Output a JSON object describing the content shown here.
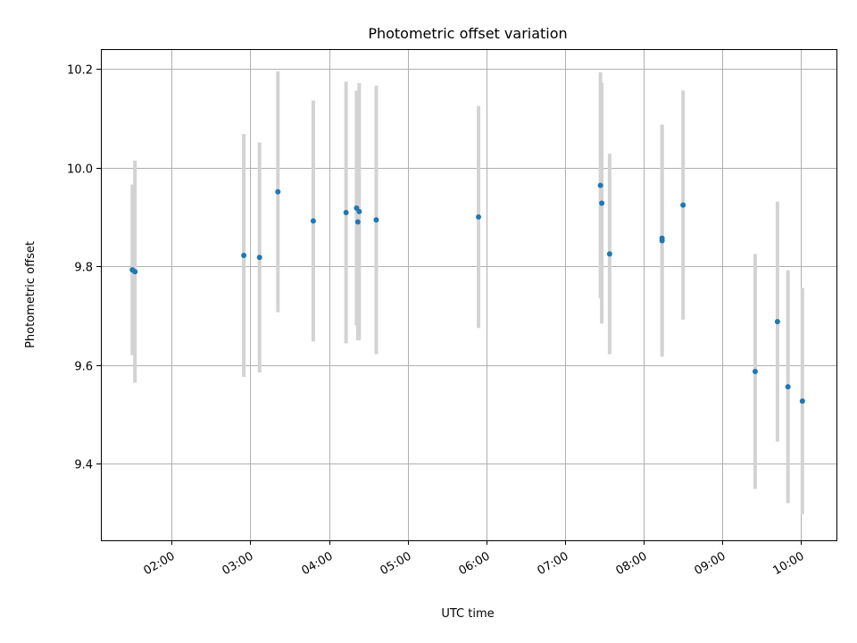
{
  "chart_data": {
    "type": "scatter",
    "title": "Photometric offset variation",
    "xlabel": "UTC time",
    "ylabel": "Photometric offset",
    "x_axis_type": "time",
    "xlim": [
      "01:06",
      "10:27"
    ],
    "ylim": [
      9.245,
      10.24
    ],
    "x_ticks": [
      "02:00",
      "03:00",
      "04:00",
      "05:00",
      "06:00",
      "07:00",
      "08:00",
      "09:00",
      "10:00"
    ],
    "y_ticks": [
      9.4,
      9.6,
      9.8,
      10.0,
      10.2
    ],
    "y_tick_labels": [
      "9.4",
      "9.6",
      "9.8",
      "10.0",
      "10.2"
    ],
    "grid": true,
    "legend": "none",
    "point_color": "#1f77b4",
    "errorbar_color": "#d3d3d3",
    "points": [
      {
        "x": "01:30",
        "y": 9.793,
        "err": 0.173
      },
      {
        "x": "01:32",
        "y": 9.789,
        "err": 0.225
      },
      {
        "x": "02:55",
        "y": 9.822,
        "err": 0.246
      },
      {
        "x": "03:07",
        "y": 9.818,
        "err": 0.233
      },
      {
        "x": "03:21",
        "y": 9.951,
        "err": 0.244
      },
      {
        "x": "03:48",
        "y": 9.892,
        "err": 0.244
      },
      {
        "x": "04:13",
        "y": 9.909,
        "err": 0.265
      },
      {
        "x": "04:21",
        "y": 9.918,
        "err": 0.238
      },
      {
        "x": "04:22",
        "y": 9.89,
        "err": 0.24
      },
      {
        "x": "04:23",
        "y": 9.911,
        "err": 0.26
      },
      {
        "x": "04:36",
        "y": 9.894,
        "err": 0.272
      },
      {
        "x": "05:54",
        "y": 9.9,
        "err": 0.225
      },
      {
        "x": "07:27",
        "y": 9.964,
        "err": 0.229
      },
      {
        "x": "07:28",
        "y": 9.928,
        "err": 0.244
      },
      {
        "x": "07:34",
        "y": 9.825,
        "err": 0.203
      },
      {
        "x": "08:14",
        "y": 9.857,
        "err": 0.23
      },
      {
        "x": "08:14",
        "y": 9.852,
        "err": 0.235
      },
      {
        "x": "08:30",
        "y": 9.924,
        "err": 0.232
      },
      {
        "x": "09:25",
        "y": 9.587,
        "err": 0.238
      },
      {
        "x": "09:42",
        "y": 9.688,
        "err": 0.243
      },
      {
        "x": "09:50",
        "y": 9.556,
        "err": 0.236
      },
      {
        "x": "10:01",
        "y": 9.527,
        "err": 0.229
      }
    ]
  }
}
